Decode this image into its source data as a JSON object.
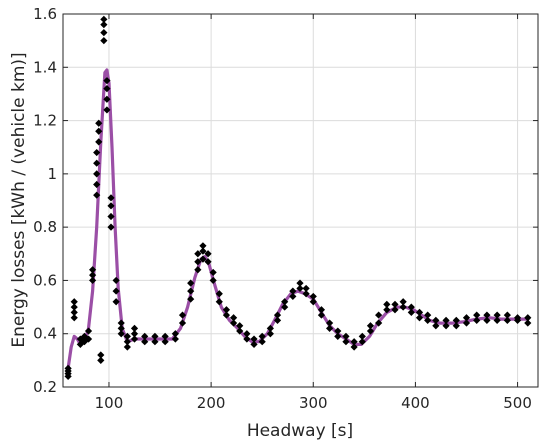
{
  "chart_data": {
    "type": "scatter",
    "xlabel": "Headway [s]",
    "ylabel": "Energy losses [kWh / (vehicle km)]",
    "xlim": [
      55,
      520
    ],
    "ylim": [
      0.2,
      1.6
    ],
    "xticks": [
      100,
      200,
      300,
      400,
      500
    ],
    "yticks": [
      0.2,
      0.4,
      0.6,
      0.8,
      1,
      1.2,
      1.4,
      1.6
    ],
    "grid": true,
    "series": [
      {
        "kind": "points",
        "color": "#000000",
        "marker": "diamond",
        "points": [
          [
            60,
            0.24
          ],
          [
            60,
            0.25
          ],
          [
            60,
            0.26
          ],
          [
            60,
            0.27
          ],
          [
            66,
            0.46
          ],
          [
            66,
            0.48
          ],
          [
            66,
            0.5
          ],
          [
            66,
            0.52
          ],
          [
            72,
            0.36
          ],
          [
            72,
            0.38
          ],
          [
            76,
            0.37
          ],
          [
            76,
            0.39
          ],
          [
            80,
            0.38
          ],
          [
            80,
            0.41
          ],
          [
            84,
            0.6
          ],
          [
            84,
            0.62
          ],
          [
            84,
            0.64
          ],
          [
            88,
            0.92
          ],
          [
            88,
            0.96
          ],
          [
            88,
            1.0
          ],
          [
            88,
            1.04
          ],
          [
            88,
            1.08
          ],
          [
            90,
            1.12
          ],
          [
            90,
            1.16
          ],
          [
            90,
            1.19
          ],
          [
            92,
            0.3
          ],
          [
            92,
            0.32
          ],
          [
            95,
            1.5
          ],
          [
            95,
            1.53
          ],
          [
            95,
            1.56
          ],
          [
            95,
            1.58
          ],
          [
            98,
            1.24
          ],
          [
            98,
            1.28
          ],
          [
            98,
            1.32
          ],
          [
            98,
            1.35
          ],
          [
            102,
            0.8
          ],
          [
            102,
            0.84
          ],
          [
            102,
            0.88
          ],
          [
            102,
            0.91
          ],
          [
            107,
            0.52
          ],
          [
            107,
            0.56
          ],
          [
            107,
            0.6
          ],
          [
            112,
            0.4
          ],
          [
            112,
            0.42
          ],
          [
            112,
            0.44
          ],
          [
            118,
            0.35
          ],
          [
            118,
            0.37
          ],
          [
            118,
            0.39
          ],
          [
            125,
            0.38
          ],
          [
            125,
            0.4
          ],
          [
            125,
            0.42
          ],
          [
            135,
            0.37
          ],
          [
            135,
            0.39
          ],
          [
            145,
            0.37
          ],
          [
            145,
            0.39
          ],
          [
            155,
            0.37
          ],
          [
            155,
            0.39
          ],
          [
            165,
            0.38
          ],
          [
            165,
            0.4
          ],
          [
            172,
            0.44
          ],
          [
            172,
            0.47
          ],
          [
            180,
            0.53
          ],
          [
            180,
            0.56
          ],
          [
            180,
            0.59
          ],
          [
            187,
            0.64
          ],
          [
            187,
            0.67
          ],
          [
            187,
            0.7
          ],
          [
            192,
            0.68
          ],
          [
            192,
            0.71
          ],
          [
            192,
            0.73
          ],
          [
            197,
            0.67
          ],
          [
            197,
            0.7
          ],
          [
            202,
            0.6
          ],
          [
            202,
            0.63
          ],
          [
            208,
            0.52
          ],
          [
            208,
            0.55
          ],
          [
            215,
            0.47
          ],
          [
            215,
            0.49
          ],
          [
            222,
            0.44
          ],
          [
            222,
            0.46
          ],
          [
            228,
            0.41
          ],
          [
            228,
            0.43
          ],
          [
            235,
            0.38
          ],
          [
            235,
            0.4
          ],
          [
            242,
            0.36
          ],
          [
            242,
            0.38
          ],
          [
            250,
            0.37
          ],
          [
            250,
            0.39
          ],
          [
            258,
            0.4
          ],
          [
            258,
            0.42
          ],
          [
            265,
            0.45
          ],
          [
            265,
            0.47
          ],
          [
            272,
            0.5
          ],
          [
            272,
            0.52
          ],
          [
            280,
            0.54
          ],
          [
            280,
            0.56
          ],
          [
            287,
            0.57
          ],
          [
            287,
            0.59
          ],
          [
            293,
            0.55
          ],
          [
            293,
            0.57
          ],
          [
            300,
            0.52
          ],
          [
            300,
            0.54
          ],
          [
            308,
            0.47
          ],
          [
            308,
            0.49
          ],
          [
            316,
            0.42
          ],
          [
            316,
            0.44
          ],
          [
            324,
            0.39
          ],
          [
            324,
            0.41
          ],
          [
            332,
            0.37
          ],
          [
            332,
            0.39
          ],
          [
            340,
            0.35
          ],
          [
            340,
            0.37
          ],
          [
            348,
            0.37
          ],
          [
            348,
            0.39
          ],
          [
            356,
            0.41
          ],
          [
            356,
            0.43
          ],
          [
            364,
            0.44
          ],
          [
            364,
            0.47
          ],
          [
            372,
            0.49
          ],
          [
            372,
            0.51
          ],
          [
            380,
            0.49
          ],
          [
            380,
            0.51
          ],
          [
            388,
            0.5
          ],
          [
            388,
            0.52
          ],
          [
            396,
            0.48
          ],
          [
            396,
            0.5
          ],
          [
            404,
            0.46
          ],
          [
            404,
            0.48
          ],
          [
            412,
            0.45
          ],
          [
            412,
            0.47
          ],
          [
            420,
            0.43
          ],
          [
            420,
            0.45
          ],
          [
            430,
            0.43
          ],
          [
            430,
            0.45
          ],
          [
            440,
            0.43
          ],
          [
            440,
            0.45
          ],
          [
            450,
            0.44
          ],
          [
            450,
            0.46
          ],
          [
            460,
            0.45
          ],
          [
            460,
            0.47
          ],
          [
            470,
            0.45
          ],
          [
            470,
            0.47
          ],
          [
            480,
            0.45
          ],
          [
            480,
            0.47
          ],
          [
            490,
            0.45
          ],
          [
            490,
            0.47
          ],
          [
            500,
            0.45
          ],
          [
            500,
            0.46
          ],
          [
            510,
            0.44
          ],
          [
            510,
            0.46
          ]
        ]
      },
      {
        "kind": "line",
        "color": "#9b4fa6",
        "points": [
          [
            60,
            0.27
          ],
          [
            63,
            0.35
          ],
          [
            66,
            0.39
          ],
          [
            69,
            0.38
          ],
          [
            72,
            0.36
          ],
          [
            76,
            0.37
          ],
          [
            80,
            0.42
          ],
          [
            84,
            0.56
          ],
          [
            88,
            0.8
          ],
          [
            92,
            1.12
          ],
          [
            96,
            1.38
          ],
          [
            98,
            1.39
          ],
          [
            100,
            1.34
          ],
          [
            103,
            1.1
          ],
          [
            106,
            0.8
          ],
          [
            109,
            0.57
          ],
          [
            113,
            0.42
          ],
          [
            118,
            0.37
          ],
          [
            125,
            0.38
          ],
          [
            135,
            0.38
          ],
          [
            150,
            0.38
          ],
          [
            162,
            0.38
          ],
          [
            170,
            0.42
          ],
          [
            177,
            0.5
          ],
          [
            184,
            0.61
          ],
          [
            190,
            0.68
          ],
          [
            194,
            0.69
          ],
          [
            198,
            0.66
          ],
          [
            203,
            0.59
          ],
          [
            210,
            0.5
          ],
          [
            218,
            0.45
          ],
          [
            226,
            0.42
          ],
          [
            233,
            0.39
          ],
          [
            240,
            0.37
          ],
          [
            247,
            0.37
          ],
          [
            255,
            0.4
          ],
          [
            262,
            0.45
          ],
          [
            270,
            0.51
          ],
          [
            278,
            0.55
          ],
          [
            285,
            0.56
          ],
          [
            292,
            0.55
          ],
          [
            300,
            0.53
          ],
          [
            308,
            0.48
          ],
          [
            316,
            0.43
          ],
          [
            324,
            0.4
          ],
          [
            332,
            0.38
          ],
          [
            340,
            0.36
          ],
          [
            347,
            0.36
          ],
          [
            355,
            0.39
          ],
          [
            363,
            0.44
          ],
          [
            372,
            0.48
          ],
          [
            382,
            0.5
          ],
          [
            390,
            0.5
          ],
          [
            398,
            0.49
          ],
          [
            406,
            0.47
          ],
          [
            414,
            0.45
          ],
          [
            424,
            0.44
          ],
          [
            436,
            0.44
          ],
          [
            448,
            0.445
          ],
          [
            460,
            0.455
          ],
          [
            472,
            0.46
          ],
          [
            484,
            0.455
          ],
          [
            496,
            0.455
          ],
          [
            510,
            0.455
          ]
        ]
      }
    ]
  }
}
